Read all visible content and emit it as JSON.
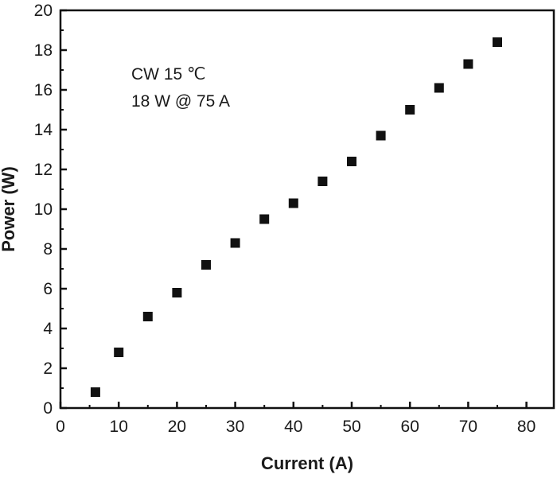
{
  "chart_data": {
    "type": "scatter",
    "title": "",
    "xlabel": "Current (A)",
    "ylabel": "Power (W)",
    "xlim": [
      0,
      85
    ],
    "ylim": [
      0,
      20
    ],
    "xticks": [
      0,
      10,
      20,
      30,
      40,
      50,
      60,
      70,
      80
    ],
    "yticks": [
      0,
      2,
      4,
      6,
      8,
      10,
      12,
      14,
      16,
      18,
      20
    ],
    "grid": false,
    "annotations": [
      "CW 15 ℃",
      "18 W @ 75 A"
    ],
    "marker": "square",
    "color": "#111111",
    "x": [
      6,
      10,
      15,
      20,
      25,
      30,
      35,
      40,
      45,
      50,
      55,
      60,
      65,
      70,
      75
    ],
    "y": [
      0.8,
      2.8,
      4.6,
      5.8,
      7.2,
      8.3,
      9.5,
      10.3,
      11.4,
      12.4,
      13.7,
      15.0,
      16.1,
      17.3,
      18.4
    ]
  }
}
